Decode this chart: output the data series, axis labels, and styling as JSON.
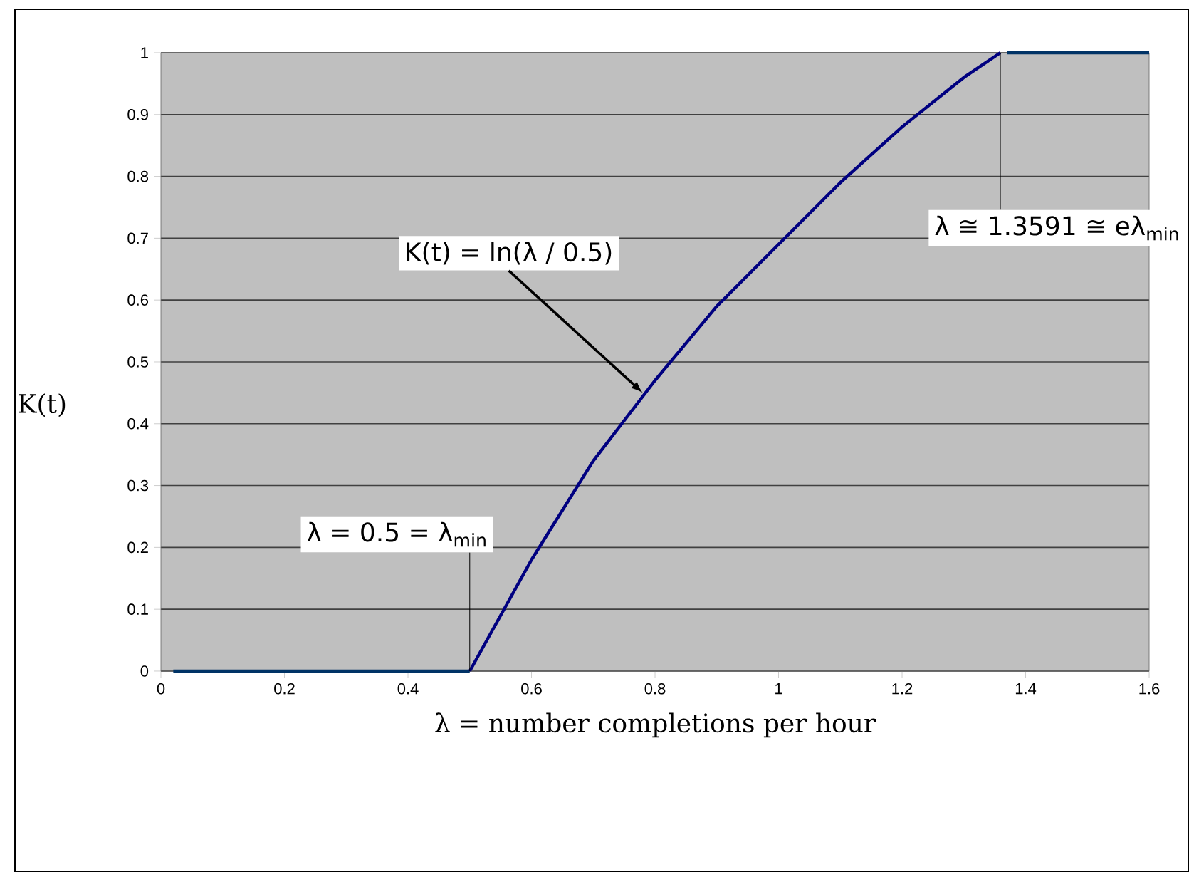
{
  "chart_data": {
    "type": "line",
    "xlabel": "λ = number completions per hour",
    "ylabel": "K(t)",
    "xlim": [
      0,
      1.6
    ],
    "xticks": [
      0,
      0.2,
      0.4,
      0.6,
      0.8,
      1,
      1.2,
      1.4,
      1.6
    ],
    "ylim": [
      0,
      1
    ],
    "yticks": [
      0,
      0.1,
      0.2,
      0.3,
      0.4,
      0.5,
      0.6,
      0.7,
      0.8,
      0.9,
      1
    ],
    "grid": "y",
    "marker": "none",
    "line_style": "solid",
    "series": [
      {
        "color": "#003366",
        "x": [
          0.02,
          0.5
        ],
        "values": [
          0,
          0
        ]
      },
      {
        "color": "#000080",
        "x": [
          0.5,
          0.6,
          0.7,
          0.8,
          0.9,
          1.0,
          1.1,
          1.2,
          1.3,
          1.3591
        ],
        "values": [
          0,
          0.18,
          0.34,
          0.47,
          0.59,
          0.69,
          0.79,
          0.88,
          0.96,
          1
        ]
      },
      {
        "color": "#003366",
        "x": [
          1.37,
          1.6
        ],
        "values": [
          1,
          1
        ]
      }
    ],
    "annotations": [
      {
        "text": "K(t) = ln(λ / 0.5)",
        "x": 0.78,
        "y": 0.45
      },
      {
        "text": "λ = 0.5 = λ$_{min}$",
        "x": 0.5,
        "y": 0
      },
      {
        "text": "λ ≅ 1.3591 ≅ eλ$_{min}$",
        "x": 1.3591,
        "y": 1
      }
    ]
  }
}
